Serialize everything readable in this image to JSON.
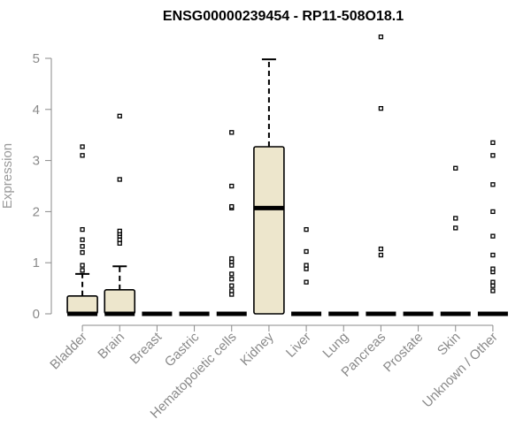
{
  "chart_data": {
    "type": "box",
    "title": "ENSG00000239454 - RP11-508O18.1",
    "xlabel": "",
    "ylabel": "Expression",
    "ylim": [
      0,
      5.5
    ],
    "yticks": [
      0,
      1,
      2,
      3,
      4,
      5
    ],
    "grid": false,
    "box_fill": "#ede6cc",
    "box_stroke": "#000000",
    "axis_color": "#8a8a8a",
    "categories": [
      "Bladder",
      "Brain",
      "Breast",
      "Gastric",
      "Hematopoietic cells",
      "Kidney",
      "Liver",
      "Lung",
      "Pancreas",
      "Prostate",
      "Skin",
      "Unknown / Other"
    ],
    "boxes": [
      {
        "q1": 0,
        "median": 0,
        "q3": 0.35,
        "whisker_low": 0,
        "whisker_high": 0.78,
        "outliers": [
          0.85,
          0.95,
          1.2,
          1.32,
          1.45,
          1.65,
          3.1,
          3.27
        ]
      },
      {
        "q1": 0,
        "median": 0,
        "q3": 0.47,
        "whisker_low": 0,
        "whisker_high": 0.93,
        "outliers": [
          1.38,
          1.45,
          1.52,
          1.57,
          1.62,
          2.63,
          3.87
        ]
      },
      {
        "q1": 0,
        "median": 0,
        "q3": 0,
        "whisker_low": 0,
        "whisker_high": 0,
        "outliers": []
      },
      {
        "q1": 0,
        "median": 0,
        "q3": 0,
        "whisker_low": 0,
        "whisker_high": 0,
        "outliers": []
      },
      {
        "q1": 0,
        "median": 0,
        "q3": 0,
        "whisker_low": 0,
        "whisker_high": 0,
        "outliers": [
          0.38,
          0.45,
          0.55,
          0.68,
          0.78,
          0.95,
          1.02,
          1.08,
          2.07,
          2.1,
          2.5,
          3.55
        ]
      },
      {
        "q1": 0,
        "median": 2.07,
        "q3": 3.27,
        "whisker_low": 0,
        "whisker_high": 4.98,
        "outliers": []
      },
      {
        "q1": 0,
        "median": 0,
        "q3": 0,
        "whisker_low": 0,
        "whisker_high": 0,
        "outliers": [
          0.62,
          0.88,
          0.95,
          1.22,
          1.65
        ]
      },
      {
        "q1": 0,
        "median": 0,
        "q3": 0,
        "whisker_low": 0,
        "whisker_high": 0,
        "outliers": []
      },
      {
        "q1": 0,
        "median": 0,
        "q3": 0,
        "whisker_low": 0,
        "whisker_high": 0,
        "outliers": [
          1.15,
          1.27,
          4.02,
          5.42
        ]
      },
      {
        "q1": 0,
        "median": 0,
        "q3": 0,
        "whisker_low": 0,
        "whisker_high": 0,
        "outliers": []
      },
      {
        "q1": 0,
        "median": 0,
        "q3": 0,
        "whisker_low": 0,
        "whisker_high": 0,
        "outliers": [
          1.68,
          1.87,
          2.85
        ]
      },
      {
        "q1": 0,
        "median": 0,
        "q3": 0,
        "whisker_low": 0,
        "whisker_high": 0,
        "outliers": [
          0.45,
          0.55,
          0.62,
          0.82,
          0.88,
          1.15,
          1.52,
          2.0,
          2.53,
          3.1,
          3.35
        ]
      }
    ]
  }
}
